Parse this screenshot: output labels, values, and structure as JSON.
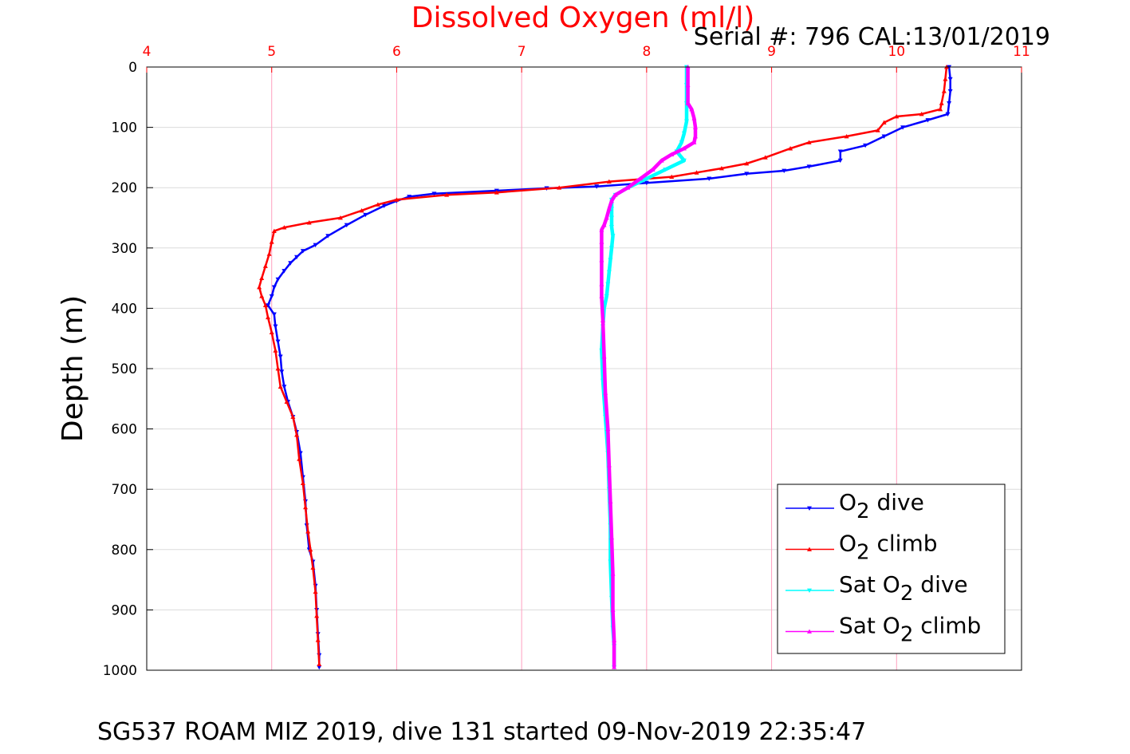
{
  "page": {
    "top_title": "Dissolved Oxygen (ml/l)",
    "serial_text": "Serial #: 796  CAL:13/01/2019",
    "footer": "SG537 ROAM MIZ 2019, dive 131 started 09-Nov-2019 22:35:47"
  },
  "legend": {
    "items": [
      {
        "pre": "O",
        "sub": "2",
        "post": " dive",
        "color": "#0000ff",
        "marker": "tri-down"
      },
      {
        "pre": "O",
        "sub": "2",
        "post": " climb",
        "color": "#ff0000",
        "marker": "tri-up"
      },
      {
        "pre": "Sat O",
        "sub": "2",
        "post": " dive",
        "color": "#00ffff",
        "marker": "tri-down"
      },
      {
        "pre": "Sat O",
        "sub": "2",
        "post": " climb",
        "color": "#ff00ff",
        "marker": "tri-up"
      }
    ]
  },
  "chart_data": {
    "type": "scatter",
    "title": "Dissolved Oxygen (ml/l)",
    "xlabel": "",
    "ylabel": "Depth (m)",
    "xlim": [
      4,
      11
    ],
    "ylim": [
      0,
      1000
    ],
    "y_reversed": true,
    "x_axis_position": "top",
    "xticks": [
      4,
      5,
      6,
      7,
      8,
      9,
      10,
      11
    ],
    "yticks": [
      0,
      100,
      200,
      300,
      400,
      500,
      600,
      700,
      800,
      900,
      1000
    ],
    "grid": true,
    "legend_position": "bottom-right",
    "colors": {
      "o2_dive": "#0000ff",
      "o2_climb": "#ff0000",
      "sat_dive": "#00ffff",
      "sat_climb": "#ff00ff",
      "top_axis": "#ff0000",
      "grid_x": "#ff9fbf",
      "grid_y": "#dcdcdc"
    },
    "series": [
      {
        "key": "o2_dive",
        "name": "O2 dive",
        "color": "#0000ff",
        "marker": "tri-down",
        "points": [
          [
            10.42,
            0
          ],
          [
            10.43,
            20
          ],
          [
            10.43,
            40
          ],
          [
            10.42,
            60
          ],
          [
            10.41,
            78
          ],
          [
            10.25,
            88
          ],
          [
            10.05,
            100
          ],
          [
            9.9,
            115
          ],
          [
            9.75,
            130
          ],
          [
            9.55,
            140
          ],
          [
            9.55,
            155
          ],
          [
            9.3,
            165
          ],
          [
            9.1,
            172
          ],
          [
            8.8,
            177
          ],
          [
            8.5,
            185
          ],
          [
            8.0,
            192
          ],
          [
            7.6,
            198
          ],
          [
            7.2,
            201
          ],
          [
            6.8,
            205
          ],
          [
            6.3,
            210
          ],
          [
            6.1,
            215
          ],
          [
            6.0,
            222
          ],
          [
            5.9,
            230
          ],
          [
            5.75,
            245
          ],
          [
            5.6,
            262
          ],
          [
            5.45,
            280
          ],
          [
            5.35,
            295
          ],
          [
            5.25,
            305
          ],
          [
            5.2,
            315
          ],
          [
            5.15,
            325
          ],
          [
            5.1,
            338
          ],
          [
            5.05,
            352
          ],
          [
            5.02,
            365
          ],
          [
            5.0,
            380
          ],
          [
            4.97,
            395
          ],
          [
            5.02,
            410
          ],
          [
            5.03,
            430
          ],
          [
            5.05,
            455
          ],
          [
            5.07,
            480
          ],
          [
            5.08,
            505
          ],
          [
            5.1,
            530
          ],
          [
            5.13,
            555
          ],
          [
            5.17,
            580
          ],
          [
            5.2,
            605
          ],
          [
            5.23,
            640
          ],
          [
            5.25,
            680
          ],
          [
            5.27,
            720
          ],
          [
            5.28,
            760
          ],
          [
            5.3,
            800
          ],
          [
            5.33,
            820
          ],
          [
            5.35,
            860
          ],
          [
            5.36,
            900
          ],
          [
            5.37,
            940
          ],
          [
            5.38,
            975
          ],
          [
            5.38,
            995
          ]
        ]
      },
      {
        "key": "o2_climb",
        "name": "O2 climb",
        "color": "#ff0000",
        "marker": "tri-up",
        "points": [
          [
            10.4,
            0
          ],
          [
            10.39,
            20
          ],
          [
            10.38,
            40
          ],
          [
            10.36,
            60
          ],
          [
            10.35,
            70
          ],
          [
            10.2,
            78
          ],
          [
            10.0,
            82
          ],
          [
            9.9,
            92
          ],
          [
            9.85,
            105
          ],
          [
            9.6,
            115
          ],
          [
            9.3,
            125
          ],
          [
            9.15,
            135
          ],
          [
            8.95,
            150
          ],
          [
            8.8,
            160
          ],
          [
            8.6,
            168
          ],
          [
            8.4,
            175
          ],
          [
            8.2,
            182
          ],
          [
            7.7,
            190
          ],
          [
            7.3,
            200
          ],
          [
            6.8,
            208
          ],
          [
            6.4,
            212
          ],
          [
            6.0,
            220
          ],
          [
            5.85,
            228
          ],
          [
            5.72,
            238
          ],
          [
            5.55,
            250
          ],
          [
            5.3,
            258
          ],
          [
            5.1,
            266
          ],
          [
            5.02,
            272
          ],
          [
            5.0,
            290
          ],
          [
            4.98,
            310
          ],
          [
            4.95,
            330
          ],
          [
            4.92,
            350
          ],
          [
            4.9,
            365
          ],
          [
            4.92,
            380
          ],
          [
            4.95,
            395
          ],
          [
            4.97,
            415
          ],
          [
            5.0,
            440
          ],
          [
            5.03,
            470
          ],
          [
            5.05,
            500
          ],
          [
            5.07,
            530
          ],
          [
            5.12,
            555
          ],
          [
            5.17,
            580
          ],
          [
            5.2,
            610
          ],
          [
            5.22,
            650
          ],
          [
            5.25,
            690
          ],
          [
            5.27,
            730
          ],
          [
            5.29,
            770
          ],
          [
            5.31,
            800
          ],
          [
            5.33,
            830
          ],
          [
            5.35,
            870
          ],
          [
            5.36,
            910
          ],
          [
            5.37,
            950
          ],
          [
            5.38,
            990
          ]
        ]
      },
      {
        "key": "sat_dive",
        "name": "Sat O2 dive",
        "color": "#00ffff",
        "marker": "tri-down",
        "points": [
          [
            8.32,
            0
          ],
          [
            8.32,
            30
          ],
          [
            8.32,
            60
          ],
          [
            8.32,
            90
          ],
          [
            8.3,
            110
          ],
          [
            8.28,
            125
          ],
          [
            8.24,
            140
          ],
          [
            8.3,
            155
          ],
          [
            8.15,
            170
          ],
          [
            8.0,
            185
          ],
          [
            7.85,
            200
          ],
          [
            7.75,
            212
          ],
          [
            7.72,
            220
          ],
          [
            7.72,
            235
          ],
          [
            7.72,
            250
          ],
          [
            7.72,
            265
          ],
          [
            7.73,
            280
          ],
          [
            7.72,
            300
          ],
          [
            7.71,
            320
          ],
          [
            7.7,
            340
          ],
          [
            7.69,
            360
          ],
          [
            7.68,
            380
          ],
          [
            7.66,
            400
          ],
          [
            7.65,
            430
          ],
          [
            7.64,
            470
          ],
          [
            7.65,
            520
          ],
          [
            7.67,
            580
          ],
          [
            7.69,
            640
          ],
          [
            7.7,
            700
          ],
          [
            7.71,
            760
          ],
          [
            7.71,
            820
          ],
          [
            7.72,
            880
          ],
          [
            7.73,
            930
          ],
          [
            7.74,
            960
          ],
          [
            7.74,
            995
          ]
        ]
      },
      {
        "key": "sat_climb",
        "name": "Sat O2 climb",
        "color": "#ff00ff",
        "marker": "tri-up",
        "points": [
          [
            8.33,
            0
          ],
          [
            8.33,
            30
          ],
          [
            8.33,
            60
          ],
          [
            8.36,
            70
          ],
          [
            8.38,
            85
          ],
          [
            8.39,
            100
          ],
          [
            8.39,
            115
          ],
          [
            8.38,
            125
          ],
          [
            8.3,
            135
          ],
          [
            8.2,
            145
          ],
          [
            8.12,
            155
          ],
          [
            8.05,
            170
          ],
          [
            7.95,
            185
          ],
          [
            7.85,
            200
          ],
          [
            7.75,
            212
          ],
          [
            7.72,
            222
          ],
          [
            7.7,
            235
          ],
          [
            7.68,
            250
          ],
          [
            7.66,
            262
          ],
          [
            7.64,
            270
          ],
          [
            7.64,
            290
          ],
          [
            7.64,
            320
          ],
          [
            7.64,
            360
          ],
          [
            7.64,
            380
          ],
          [
            7.65,
            420
          ],
          [
            7.66,
            480
          ],
          [
            7.67,
            540
          ],
          [
            7.69,
            600
          ],
          [
            7.7,
            660
          ],
          [
            7.71,
            720
          ],
          [
            7.72,
            780
          ],
          [
            7.73,
            840
          ],
          [
            7.73,
            900
          ],
          [
            7.74,
            950
          ],
          [
            7.74,
            995
          ]
        ]
      }
    ]
  }
}
